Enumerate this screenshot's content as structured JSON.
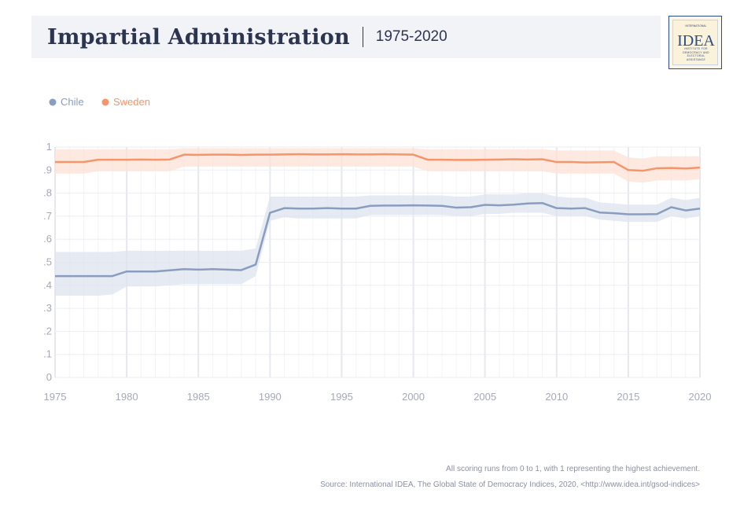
{
  "header": {
    "title": "Impartial Administration",
    "subtitle": "1975-2020"
  },
  "logo": {
    "text_small_top": "INTERNATIONAL",
    "text_big": "IDEA",
    "text_small_bottom": "INSTITUTE FOR DEMOCRACY AND ELECTORAL ASSISTANCE"
  },
  "footer": {
    "note": "All scoring runs from 0 to 1, with 1 representing the highest achievement.",
    "source": "Source: International IDEA, The Global State of Democracy Indices, 2020, <http://www.idea.int/gsod-indices>"
  },
  "chart_data": {
    "type": "line",
    "title": "Impartial Administration",
    "subtitle": "1975-2020",
    "xlim": [
      1975,
      2020
    ],
    "ylim": [
      0,
      1
    ],
    "x_ticks": [
      1975,
      1980,
      1985,
      1990,
      1995,
      2000,
      2005,
      2010,
      2015,
      2020
    ],
    "y_ticks": [
      0,
      0.1,
      0.2,
      0.3,
      0.4,
      0.5,
      0.6,
      0.7,
      0.8,
      0.9,
      1
    ],
    "y_tick_labels": [
      "0",
      ".1",
      ".2",
      ".3",
      ".4",
      ".5",
      ".6",
      ".7",
      ".8",
      ".9",
      "1"
    ],
    "grid": true,
    "legend_position": "top-left",
    "x": [
      1975,
      1976,
      1977,
      1978,
      1979,
      1980,
      1981,
      1982,
      1983,
      1984,
      1985,
      1986,
      1987,
      1988,
      1989,
      1990,
      1991,
      1992,
      1993,
      1994,
      1995,
      1996,
      1997,
      1998,
      1999,
      2000,
      2001,
      2002,
      2003,
      2004,
      2005,
      2006,
      2007,
      2008,
      2009,
      2010,
      2011,
      2012,
      2013,
      2014,
      2015,
      2016,
      2017,
      2018,
      2019,
      2020
    ],
    "series": [
      {
        "name": "Chile",
        "color": "#8a9dc0",
        "band_color": "#dde3ee",
        "values": [
          0.44,
          0.44,
          0.44,
          0.44,
          0.44,
          0.46,
          0.46,
          0.46,
          0.465,
          0.47,
          0.468,
          0.47,
          0.468,
          0.466,
          0.49,
          0.715,
          0.735,
          0.733,
          0.733,
          0.735,
          0.733,
          0.733,
          0.745,
          0.746,
          0.746,
          0.747,
          0.746,
          0.745,
          0.737,
          0.739,
          0.749,
          0.747,
          0.75,
          0.755,
          0.757,
          0.735,
          0.733,
          0.735,
          0.716,
          0.713,
          0.708,
          0.708,
          0.709,
          0.739,
          0.725,
          0.733
        ],
        "lower": [
          0.355,
          0.355,
          0.355,
          0.355,
          0.36,
          0.395,
          0.395,
          0.395,
          0.4,
          0.405,
          0.405,
          0.405,
          0.405,
          0.405,
          0.44,
          0.68,
          0.695,
          0.69,
          0.69,
          0.69,
          0.69,
          0.69,
          0.705,
          0.705,
          0.705,
          0.705,
          0.705,
          0.705,
          0.7,
          0.7,
          0.71,
          0.71,
          0.715,
          0.715,
          0.715,
          0.7,
          0.7,
          0.7,
          0.685,
          0.68,
          0.675,
          0.675,
          0.675,
          0.7,
          0.69,
          0.7
        ],
        "upper": [
          0.545,
          0.545,
          0.545,
          0.545,
          0.545,
          0.55,
          0.55,
          0.55,
          0.55,
          0.55,
          0.55,
          0.55,
          0.55,
          0.55,
          0.56,
          0.785,
          0.785,
          0.785,
          0.785,
          0.785,
          0.785,
          0.785,
          0.79,
          0.79,
          0.79,
          0.79,
          0.79,
          0.79,
          0.785,
          0.785,
          0.795,
          0.795,
          0.795,
          0.8,
          0.8,
          0.785,
          0.78,
          0.78,
          0.76,
          0.755,
          0.75,
          0.75,
          0.75,
          0.78,
          0.77,
          0.78
        ]
      },
      {
        "name": "Sweden",
        "color": "#f4956b",
        "band_color": "#fde1d6",
        "values": [
          0.935,
          0.935,
          0.935,
          0.945,
          0.945,
          0.945,
          0.946,
          0.945,
          0.946,
          0.967,
          0.966,
          0.967,
          0.967,
          0.966,
          0.967,
          0.967,
          0.968,
          0.969,
          0.968,
          0.968,
          0.969,
          0.968,
          0.968,
          0.969,
          0.968,
          0.967,
          0.945,
          0.945,
          0.944,
          0.944,
          0.945,
          0.946,
          0.947,
          0.946,
          0.947,
          0.935,
          0.935,
          0.933,
          0.934,
          0.935,
          0.9,
          0.897,
          0.908,
          0.909,
          0.907,
          0.911
        ],
        "lower": [
          0.885,
          0.885,
          0.885,
          0.895,
          0.895,
          0.895,
          0.895,
          0.895,
          0.895,
          0.915,
          0.915,
          0.915,
          0.915,
          0.915,
          0.915,
          0.915,
          0.915,
          0.915,
          0.915,
          0.915,
          0.915,
          0.915,
          0.915,
          0.915,
          0.915,
          0.915,
          0.895,
          0.895,
          0.895,
          0.895,
          0.895,
          0.895,
          0.895,
          0.895,
          0.895,
          0.885,
          0.885,
          0.885,
          0.885,
          0.885,
          0.85,
          0.845,
          0.855,
          0.855,
          0.855,
          0.86
        ],
        "upper": [
          0.99,
          0.99,
          0.99,
          0.99,
          0.99,
          0.99,
          0.99,
          0.99,
          0.99,
          0.995,
          0.995,
          0.995,
          0.995,
          0.995,
          0.995,
          0.995,
          0.995,
          0.995,
          0.995,
          0.995,
          0.995,
          0.995,
          0.995,
          0.995,
          0.995,
          0.995,
          0.99,
          0.99,
          0.99,
          0.99,
          0.99,
          0.99,
          0.99,
          0.99,
          0.99,
          0.985,
          0.985,
          0.985,
          0.985,
          0.985,
          0.955,
          0.95,
          0.96,
          0.96,
          0.96,
          0.96
        ]
      }
    ]
  }
}
